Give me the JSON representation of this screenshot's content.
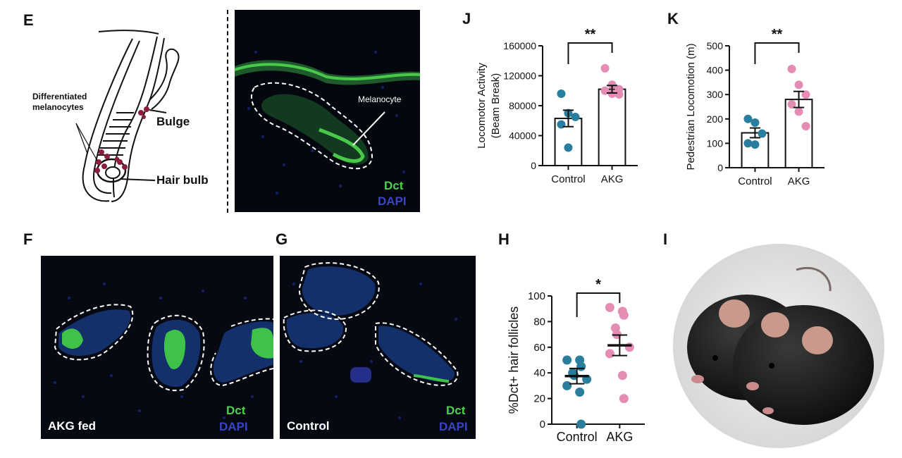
{
  "panels": {
    "E": {
      "letter": "E",
      "diagram": {
        "differentiated_label_line1": "Differentiated",
        "differentiated_label_line2": "melanocytes",
        "bulge_label": "Bulge",
        "hair_bulb_label": "Hair bulb"
      },
      "micro": {
        "melanocyte_label": "Melanocyte",
        "dct": "Dct",
        "dapi": "DAPI"
      }
    },
    "F": {
      "letter": "F",
      "condition": "AKG fed",
      "dct": "Dct",
      "dapi": "DAPI"
    },
    "G": {
      "letter": "G",
      "condition": "Control",
      "dct": "Dct",
      "dapi": "DAPI"
    },
    "H": {
      "letter": "H"
    },
    "I": {
      "letter": "I"
    },
    "J": {
      "letter": "J"
    },
    "K": {
      "letter": "K"
    }
  },
  "colors": {
    "control": "#2a7d9c",
    "akg": "#e48cb4",
    "dct_green": "#4cd24c",
    "dapi_blue": "#3a44c8"
  },
  "chart_data": [
    {
      "id": "J",
      "type": "scatter",
      "title": "",
      "ylabel_line1": "Locomotor Activity",
      "ylabel_line2": "(Beam Break)",
      "ylim": [
        0,
        160000
      ],
      "yticks": [
        0,
        40000,
        80000,
        120000,
        160000
      ],
      "ytick_labels": [
        "0",
        "40000",
        "80000",
        "120000",
        "160000"
      ],
      "categories": [
        "Control",
        "AKG"
      ],
      "significance": "**",
      "series": [
        {
          "name": "Control",
          "mean": 63000,
          "sem": 11000,
          "points": [
            96000,
            70000,
            65000,
            55000,
            24000
          ]
        },
        {
          "name": "AKG",
          "mean": 102000,
          "sem": 5000,
          "points": [
            130000,
            108000,
            102000,
            100000,
            96000,
            95000
          ]
        }
      ],
      "style": "bar_with_points"
    },
    {
      "id": "K",
      "type": "scatter",
      "title": "",
      "ylabel": "Pedestrian Locomotion (m)",
      "ylim": [
        0,
        500
      ],
      "yticks": [
        0,
        100,
        200,
        300,
        400,
        500
      ],
      "ytick_labels": [
        "0",
        "100",
        "200",
        "300",
        "400",
        "500"
      ],
      "categories": [
        "Control",
        "AKG"
      ],
      "significance": "**",
      "series": [
        {
          "name": "Control",
          "mean": 143,
          "sem": 20,
          "points": [
            200,
            185,
            140,
            100,
            95
          ]
        },
        {
          "name": "AKG",
          "mean": 280,
          "sem": 33,
          "points": [
            405,
            340,
            300,
            260,
            230,
            170
          ]
        }
      ],
      "style": "bar_with_points"
    },
    {
      "id": "H",
      "type": "scatter",
      "title": "",
      "ylabel": "%Dct+ hair follicles",
      "ylim": [
        0,
        100
      ],
      "yticks": [
        0,
        20,
        40,
        60,
        80,
        100
      ],
      "ytick_labels": [
        "0",
        "20",
        "40",
        "60",
        "80",
        "100"
      ],
      "categories": [
        "Control",
        "AKG"
      ],
      "significance": "*",
      "series": [
        {
          "name": "Control",
          "mean": 37.5,
          "sem": 6,
          "points": [
            50,
            50,
            45,
            40,
            38,
            35,
            30,
            25,
            0
          ]
        },
        {
          "name": "AKG",
          "mean": 61.5,
          "sem": 8,
          "points": [
            91,
            88,
            85,
            75,
            70,
            60,
            55,
            38,
            20
          ]
        }
      ],
      "style": "mean_sem_points"
    }
  ]
}
